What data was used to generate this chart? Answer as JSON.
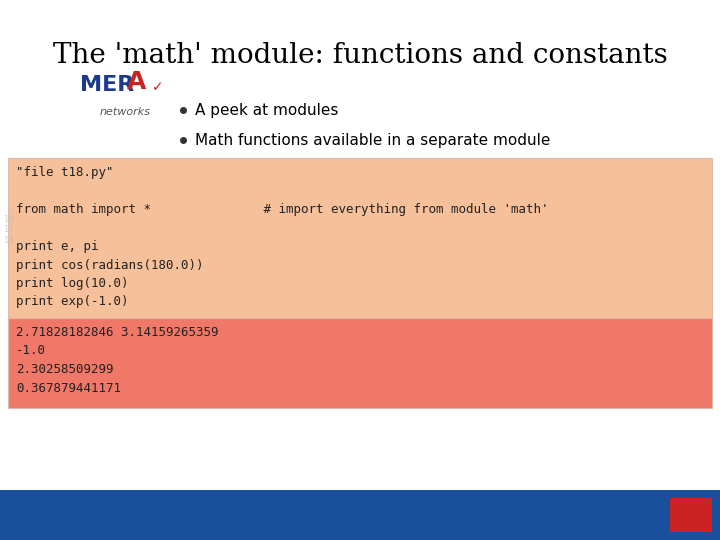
{
  "title": "The 'math' module: functions and constants",
  "bullets": [
    "A peek at modules",
    "Math functions available in a separate module"
  ],
  "code_box_color": "#F5C09A",
  "output_box_color": "#F07868",
  "background_color": "#FFFFFF",
  "footer_color": "#1A4F9C",
  "code_text": "\"file t18.py\"\n\nfrom math import *               # import everything from module 'math'\n\nprint e, pi\nprint cos(radians(180.0))\nprint log(10.0)\nprint exp(-1.0)",
  "output_text": "2.71828182846 3.14159265359\n-1.0\n2.30258509299\n0.367879441171",
  "title_fontsize": 20,
  "bullet_fontsize": 11,
  "code_fontsize": 9,
  "output_fontsize": 9,
  "mera_color": "#1a3a8c",
  "mera_a_color": "#CC2222",
  "footer_red_color": "#CC2222"
}
